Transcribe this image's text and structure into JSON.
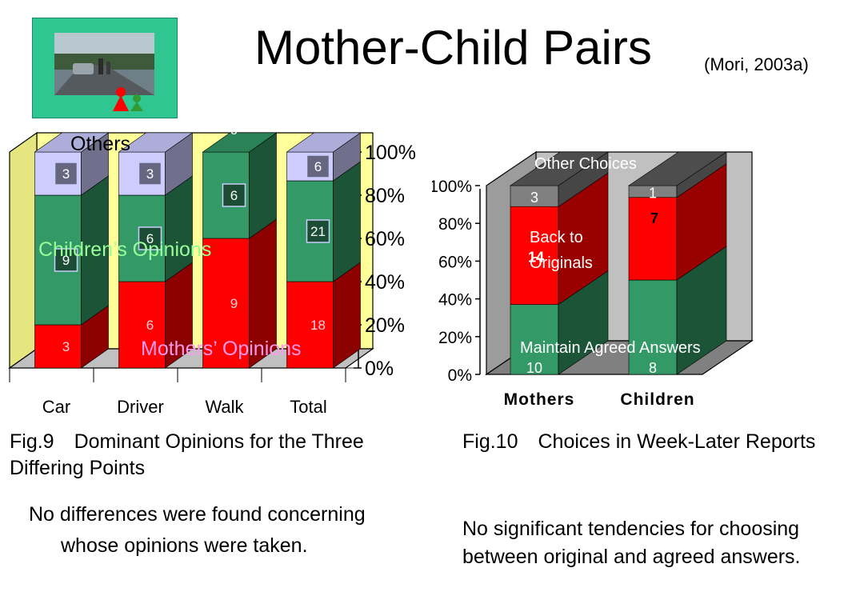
{
  "header": {
    "title": "Mother-Child Pairs",
    "citation": "(Mori, 2003a)"
  },
  "colors": {
    "mothers_red": "#ff0000",
    "children_green": "#339966",
    "others_lavender": "#ccccff",
    "other_choices_gray": "#808080",
    "wall_yellow": "#ffff99"
  },
  "chart_data": [
    {
      "type": "bar",
      "stacked": true,
      "percent_stacked": true,
      "three_d": true,
      "categories": [
        "Car",
        "Driver",
        "Walk",
        "Total"
      ],
      "series": [
        {
          "name": "Mothers’ Opinions",
          "values": [
            3,
            6,
            9,
            18
          ],
          "color": "#ff0000"
        },
        {
          "name": "Children’s Opinions",
          "values": [
            9,
            6,
            6,
            21
          ],
          "color": "#339966"
        },
        {
          "name": "Others",
          "values": [
            3,
            3,
            0,
            6
          ],
          "color": "#ccccff"
        }
      ],
      "y_ticks": [
        "0%",
        "20%",
        "40%",
        "60%",
        "80%",
        "100%"
      ],
      "ylim": [
        0,
        100
      ],
      "grid": false,
      "caption": "Fig.9　Dominant Opinions for the Three Differing Points",
      "note": "No differences were found concerning whose opinions were taken."
    },
    {
      "type": "bar",
      "stacked": true,
      "percent_stacked": true,
      "three_d": true,
      "categories": [
        "Mothers",
        "Children"
      ],
      "series": [
        {
          "name": "Maintain Agreed Answers",
          "values": [
            10,
            8
          ],
          "color": "#339966"
        },
        {
          "name": "Back to Originals",
          "values": [
            14,
            7
          ],
          "color": "#ff0000"
        },
        {
          "name": "Other Choices",
          "values": [
            3,
            1
          ],
          "color": "#808080"
        }
      ],
      "y_ticks": [
        "0%",
        "20%",
        "40%",
        "60%",
        "80%",
        "100%"
      ],
      "ylim": [
        0,
        100
      ],
      "grid": false,
      "caption": "Fig.10　Choices in Week-Later Reports",
      "note": "No significant tendencies for choosing between original and agreed answers."
    }
  ]
}
